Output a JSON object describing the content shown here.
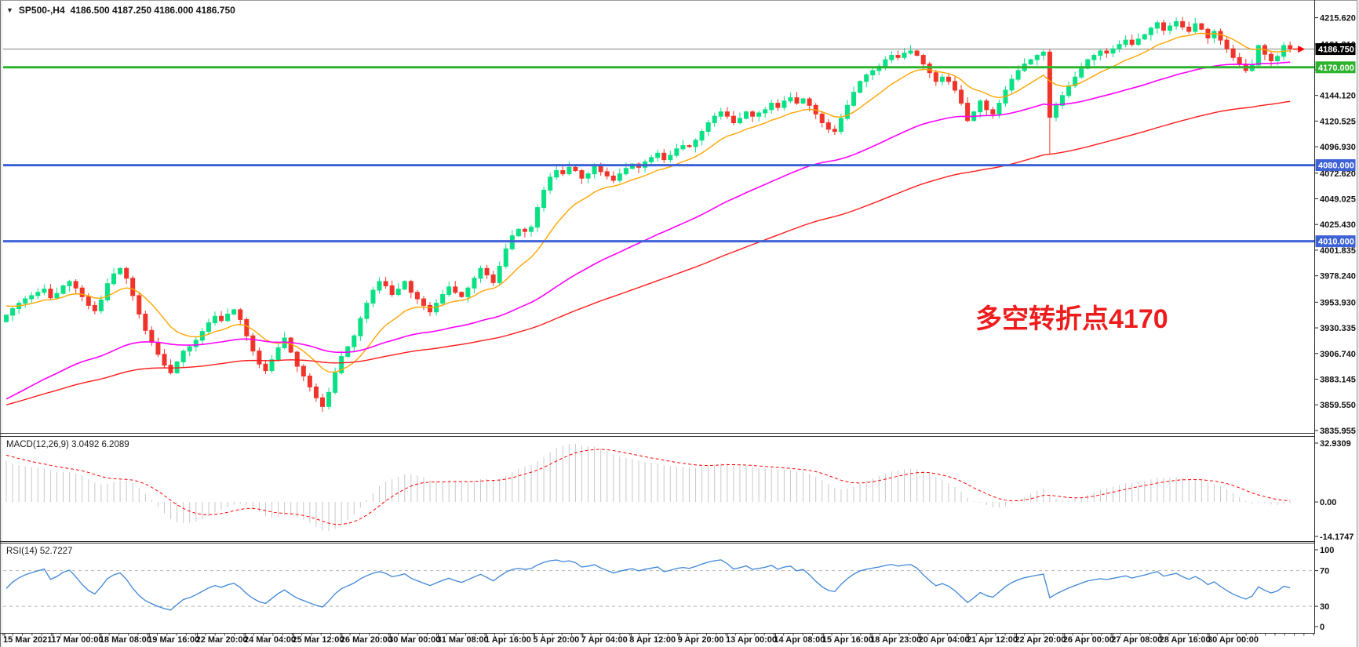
{
  "window": {
    "symbol_timeframe": "SP500-,H4",
    "ohlc": "4186.500 4187.250 4186.000 4186.750",
    "dropdown_icon": "▼"
  },
  "annotation": {
    "text": "多空转折点4170",
    "color": "#ee1c1c"
  },
  "main_chart": {
    "current_price": {
      "label": "4186.750",
      "value": 4186.75,
      "box_bg": "#000000",
      "line_color": "#808080"
    },
    "price_ticks": [
      {
        "label": "4215.620",
        "value": 4215.62
      },
      {
        "label": "4191.310",
        "value": 4191.31
      },
      {
        "label": "4167.715",
        "value": 4167.715
      },
      {
        "label": "4144.120",
        "value": 4144.12
      },
      {
        "label": "4120.525",
        "value": 4120.525
      },
      {
        "label": "4096.930",
        "value": 4096.93
      },
      {
        "label": "4072.620",
        "value": 4072.62
      },
      {
        "label": "4049.025",
        "value": 4049.025
      },
      {
        "label": "4025.430",
        "value": 4025.43
      },
      {
        "label": "4001.835",
        "value": 4001.835
      },
      {
        "label": "3978.240",
        "value": 3978.24
      },
      {
        "label": "3953.930",
        "value": 3953.93
      },
      {
        "label": "3930.335",
        "value": 3930.335
      },
      {
        "label": "3906.740",
        "value": 3906.74
      },
      {
        "label": "3883.145",
        "value": 3883.145
      },
      {
        "label": "3859.550",
        "value": 3859.55
      },
      {
        "label": "3835.955",
        "value": 3835.955
      }
    ],
    "hlines": [
      {
        "label": "4170.000",
        "value": 4170,
        "color": "#2eb32e",
        "width": 3
      },
      {
        "label": "4080.000",
        "value": 4080,
        "color": "#3e62d6",
        "width": 3
      },
      {
        "label": "4010.000",
        "value": 4010,
        "color": "#3e62d6",
        "width": 3
      }
    ]
  },
  "indicators": {
    "macd": {
      "label": "MACD(12,26,9) 3.0492 6.2089",
      "ticks": [
        "32.9309",
        "0.00",
        "-14.1747"
      ],
      "histogram_color": "#c8c8c8",
      "signal_color": "#ff0000"
    },
    "rsi": {
      "label": "RSI(14) 52.7227",
      "ticks": [
        "100",
        "70",
        "30",
        "0"
      ],
      "tick_values": [
        100,
        70,
        30,
        0
      ],
      "dashed_levels": [
        70,
        30
      ],
      "line_color": "#3e86d8",
      "level_color": "#b4b4b4"
    }
  },
  "time_axis": {
    "labels": [
      "15 Mar 2021",
      "17 Mar 00:00",
      "18 Mar 08:00",
      "19 Mar 16:00",
      "22 Mar 20:00",
      "24 Mar 04:00",
      "25 Mar 12:00",
      "26 Mar 20:00",
      "30 Mar 00:00",
      "31 Mar 08:00",
      "1 Apr 16:00",
      "5 Apr 20:00",
      "7 Apr 04:00",
      "8 Apr 12:00",
      "9 Apr 20:00",
      "13 Apr 00:00",
      "14 Apr 08:00",
      "15 Apr 16:00",
      "18 Apr 23:00",
      "20 Apr 04:00",
      "21 Apr 12:00",
      "22 Apr 20:00",
      "26 Apr 00:00",
      "27 Apr 08:00",
      "28 Apr 16:00",
      "30 Apr 00:00"
    ]
  },
  "chart_data": {
    "type": "candlestick",
    "symbol": "SP500-",
    "timeframe": "H4",
    "title": "SP500-,H4",
    "x_range": "15 Mar 2021 - 30 Apr 2021",
    "bars_per_day": 6,
    "ylim": [
      3833,
      4229
    ],
    "up_color": "#0ae084",
    "down_color": "#ef352b",
    "open_first": 3936,
    "closes": [
      3942,
      3948,
      3953,
      3957,
      3960,
      3963,
      3966,
      3958,
      3962,
      3969,
      3973,
      3967,
      3959,
      3951,
      3946,
      3956,
      3971,
      3980,
      3985,
      3976,
      3960,
      3943,
      3928,
      3917,
      3906,
      3896,
      3889,
      3899,
      3909,
      3913,
      3919,
      3927,
      3935,
      3941,
      3937,
      3943,
      3947,
      3938,
      3923,
      3909,
      3897,
      3891,
      3901,
      3912,
      3921,
      3908,
      3895,
      3886,
      3876,
      3866,
      3858,
      3871,
      3889,
      3904,
      3913,
      3923,
      3939,
      3953,
      3965,
      3973,
      3969,
      3961,
      3966,
      3973,
      3963,
      3957,
      3951,
      3945,
      3953,
      3961,
      3968,
      3963,
      3959,
      3967,
      3976,
      3985,
      3979,
      3972,
      3987,
      4003,
      4015,
      4021,
      4019,
      4023,
      4041,
      4057,
      4069,
      4075,
      4072,
      4078,
      4075,
      4068,
      4072,
      4079,
      4074,
      4070,
      4066,
      4072,
      4077,
      4081,
      4078,
      4083,
      4087,
      4091,
      4085,
      4089,
      4095,
      4098,
      4097,
      4103,
      4111,
      4119,
      4125,
      4129,
      4125,
      4119,
      4123,
      4129,
      4125,
      4128,
      4131,
      4137,
      4133,
      4139,
      4142,
      4137,
      4141,
      4135,
      4127,
      4119,
      4113,
      4111,
      4123,
      4135,
      4147,
      4157,
      4163,
      4167,
      4171,
      4177,
      4181,
      4179,
      4183,
      4185,
      4181,
      4173,
      4165,
      4157,
      4161,
      4157,
      4149,
      4137,
      4121,
      4129,
      4139,
      4131,
      4127,
      4137,
      4149,
      4159,
      4167,
      4173,
      4177,
      4181,
      4184,
      4124,
      4135,
      4144,
      4153,
      4161,
      4169,
      4177,
      4181,
      4185,
      4183,
      4187,
      4191,
      4195,
      4191,
      4196,
      4200,
      4206,
      4211,
      4204,
      4208,
      4212,
      4207,
      4203,
      4210,
      4205,
      4197,
      4203,
      4195,
      4187,
      4179,
      4173,
      4167,
      4172,
      4190,
      4182,
      4176,
      4180,
      4190,
      4186.75
    ],
    "low_spikes": [
      {
        "i": 50,
        "low": 3853
      },
      {
        "i": 165,
        "low": 4090
      }
    ],
    "moving_averages": [
      {
        "name": "EMA-fast",
        "period": 13,
        "seed": 3952,
        "color": "#ffa500",
        "width": 1.4
      },
      {
        "name": "EMA-mid",
        "period": 55,
        "seed": 3862,
        "color": "#ff00ff",
        "width": 1.6
      },
      {
        "name": "EMA-slow",
        "period": 110,
        "seed": 3858,
        "color": "#ff1a1a",
        "width": 1.4
      }
    ],
    "macd_params": {
      "fast": 12,
      "slow": 26,
      "signal": 9,
      "seed_fast": 3945,
      "seed_slow": 3920,
      "seed_signal": 27,
      "current_values": "3.0492 6.2089"
    },
    "rsi_params": {
      "period": 14,
      "current_value": 52.7227
    }
  }
}
